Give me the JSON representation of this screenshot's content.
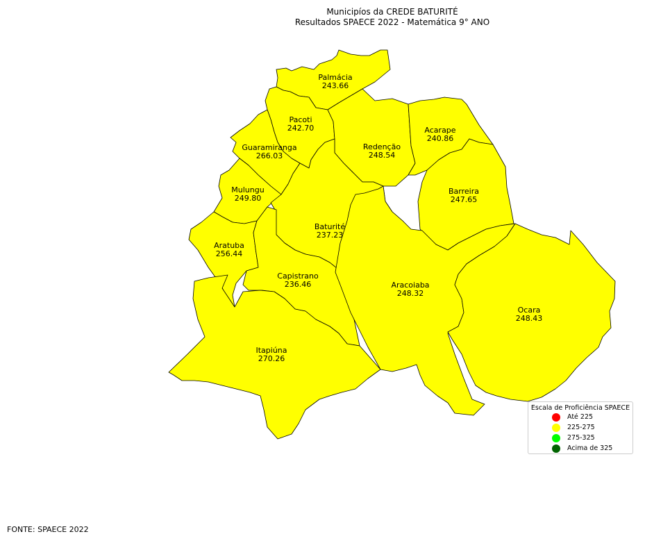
{
  "title": {
    "line1": "Municipíos da CREDE BATURITÉ",
    "line2": "Resultados SPAECE 2022 - Matemática 9° ANO"
  },
  "municipalities": [
    {
      "name": "Palmácia",
      "score": "243.66",
      "color": "#ffff00"
    },
    {
      "name": "Pacoti",
      "score": "242.70",
      "color": "#ffff00"
    },
    {
      "name": "Guaramiranga",
      "score": "266.03",
      "color": "#ffff00"
    },
    {
      "name": "Redenção",
      "score": "248.54",
      "color": "#ffff00"
    },
    {
      "name": "Acarape",
      "score": "240.86",
      "color": "#ffff00"
    },
    {
      "name": "Mulungu",
      "score": "249.80",
      "color": "#ffff00"
    },
    {
      "name": "Barreira",
      "score": "247.65",
      "color": "#ffff00"
    },
    {
      "name": "Baturité",
      "score": "237.23",
      "color": "#ffff00"
    },
    {
      "name": "Aratuba",
      "score": "256.44",
      "color": "#ffff00"
    },
    {
      "name": "Capistrano",
      "score": "236.46",
      "color": "#ffff00"
    },
    {
      "name": "Aracoiaba",
      "score": "248.32",
      "color": "#ffff00"
    },
    {
      "name": "Ocara",
      "score": "248.43",
      "color": "#ffff00"
    },
    {
      "name": "Itapiúna",
      "score": "270.26",
      "color": "#ffff00"
    }
  ],
  "legend": {
    "title": "Escala de Proficiência SPAECE",
    "items": [
      {
        "label": "Até 225",
        "color": "#ff0000"
      },
      {
        "label": "225-275",
        "color": "#ffff00"
      },
      {
        "label": "275-325",
        "color": "#00ff00"
      },
      {
        "label": "Acima de 325",
        "color": "#006400"
      }
    ]
  },
  "source": "FONTE: SPAECE 2022"
}
